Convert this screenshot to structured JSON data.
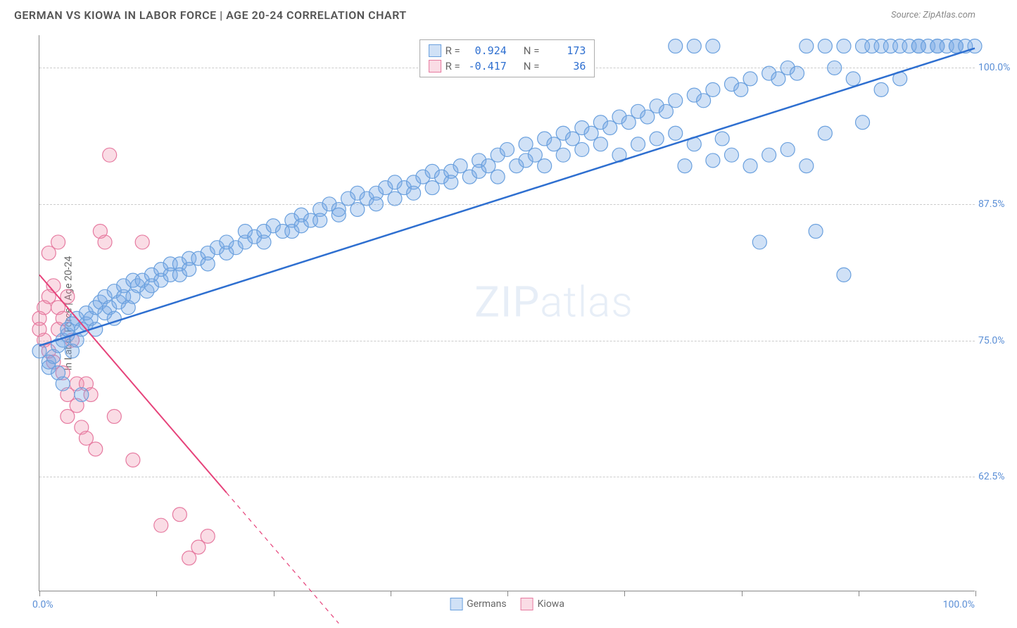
{
  "header": {
    "title": "GERMAN VS KIOWA IN LABOR FORCE | AGE 20-24 CORRELATION CHART",
    "source": "Source: ZipAtlas.com"
  },
  "watermark": {
    "prefix": "ZIP",
    "suffix": "atlas"
  },
  "chart": {
    "type": "scatter",
    "y_axis_title": "In Labor Force | Age 20-24",
    "x_min_label": "0.0%",
    "x_max_label": "100.0%",
    "xlim": [
      0,
      100
    ],
    "ylim": [
      52,
      103
    ],
    "y_ticks": [
      62.5,
      75.0,
      87.5,
      100.0
    ],
    "y_tick_labels": [
      "62.5%",
      "75.0%",
      "87.5%",
      "100.0%"
    ],
    "x_ticks": [
      0,
      12.5,
      25,
      37.5,
      50,
      62.5,
      75,
      87.5,
      100
    ],
    "background_color": "#ffffff",
    "grid_color": "#cccccc",
    "axis_color": "#888888",
    "series": {
      "germans": {
        "label": "Germans",
        "marker_fill": "rgba(120,170,230,0.35)",
        "marker_stroke": "#6aa0de",
        "line_color": "#2e6fd0",
        "line_width": 2.5,
        "marker_radius": 10,
        "R": "0.924",
        "N": "173",
        "trend": {
          "x1": 0,
          "y1": 74.5,
          "x2": 100,
          "y2": 101.8
        },
        "points": [
          [
            0,
            74
          ],
          [
            1,
            73
          ],
          [
            1,
            72.5
          ],
          [
            1.5,
            73.5
          ],
          [
            2,
            72
          ],
          [
            2,
            74.5
          ],
          [
            2.5,
            71
          ],
          [
            2.5,
            75
          ],
          [
            3,
            75.5
          ],
          [
            3,
            76
          ],
          [
            3.5,
            74
          ],
          [
            3.5,
            76.5
          ],
          [
            4,
            75
          ],
          [
            4,
            77
          ],
          [
            4.5,
            76
          ],
          [
            4.5,
            70
          ],
          [
            5,
            76.5
          ],
          [
            5,
            77.5
          ],
          [
            5.5,
            77
          ],
          [
            6,
            78
          ],
          [
            6,
            76
          ],
          [
            6.5,
            78.5
          ],
          [
            7,
            77.5
          ],
          [
            7,
            79
          ],
          [
            7.5,
            78
          ],
          [
            8,
            79.5
          ],
          [
            8,
            77
          ],
          [
            8.5,
            78.5
          ],
          [
            9,
            79
          ],
          [
            9,
            80
          ],
          [
            9.5,
            78
          ],
          [
            10,
            80.5
          ],
          [
            10,
            79
          ],
          [
            10.5,
            80
          ],
          [
            11,
            80.5
          ],
          [
            11.5,
            79.5
          ],
          [
            12,
            81
          ],
          [
            12,
            80
          ],
          [
            13,
            81.5
          ],
          [
            13,
            80.5
          ],
          [
            14,
            81
          ],
          [
            14,
            82
          ],
          [
            15,
            82
          ],
          [
            15,
            81
          ],
          [
            16,
            82.5
          ],
          [
            16,
            81.5
          ],
          [
            17,
            82.5
          ],
          [
            18,
            83
          ],
          [
            18,
            82
          ],
          [
            19,
            83.5
          ],
          [
            20,
            83
          ],
          [
            20,
            84
          ],
          [
            21,
            83.5
          ],
          [
            22,
            84
          ],
          [
            22,
            85
          ],
          [
            23,
            84.5
          ],
          [
            24,
            85
          ],
          [
            24,
            84
          ],
          [
            25,
            85.5
          ],
          [
            26,
            85
          ],
          [
            27,
            86
          ],
          [
            27,
            85
          ],
          [
            28,
            86.5
          ],
          [
            28,
            85.5
          ],
          [
            29,
            86
          ],
          [
            30,
            87
          ],
          [
            30,
            86
          ],
          [
            31,
            87.5
          ],
          [
            32,
            87
          ],
          [
            32,
            86.5
          ],
          [
            33,
            88
          ],
          [
            34,
            87
          ],
          [
            34,
            88.5
          ],
          [
            35,
            88
          ],
          [
            36,
            88.5
          ],
          [
            36,
            87.5
          ],
          [
            37,
            89
          ],
          [
            38,
            88
          ],
          [
            38,
            89.5
          ],
          [
            39,
            89
          ],
          [
            40,
            89.5
          ],
          [
            40,
            88.5
          ],
          [
            41,
            90
          ],
          [
            42,
            89
          ],
          [
            42,
            90.5
          ],
          [
            43,
            90
          ],
          [
            44,
            90.5
          ],
          [
            44,
            89.5
          ],
          [
            45,
            91
          ],
          [
            46,
            90
          ],
          [
            47,
            91.5
          ],
          [
            47,
            90.5
          ],
          [
            48,
            91
          ],
          [
            49,
            92
          ],
          [
            49,
            90
          ],
          [
            50,
            92.5
          ],
          [
            51,
            91
          ],
          [
            52,
            93
          ],
          [
            52,
            91.5
          ],
          [
            53,
            92
          ],
          [
            54,
            93.5
          ],
          [
            54,
            91
          ],
          [
            55,
            93
          ],
          [
            56,
            94
          ],
          [
            56,
            92
          ],
          [
            57,
            93.5
          ],
          [
            58,
            94.5
          ],
          [
            58,
            92.5
          ],
          [
            59,
            94
          ],
          [
            60,
            95
          ],
          [
            60,
            93
          ],
          [
            61,
            94.5
          ],
          [
            62,
            95.5
          ],
          [
            62,
            92
          ],
          [
            63,
            95
          ],
          [
            64,
            96
          ],
          [
            64,
            93
          ],
          [
            65,
            95.5
          ],
          [
            66,
            96.5
          ],
          [
            66,
            93.5
          ],
          [
            67,
            96
          ],
          [
            68,
            97
          ],
          [
            68,
            94
          ],
          [
            69,
            91
          ],
          [
            70,
            97.5
          ],
          [
            70,
            93
          ],
          [
            71,
            97
          ],
          [
            72,
            98
          ],
          [
            72,
            91.5
          ],
          [
            73,
            93.5
          ],
          [
            74,
            98.5
          ],
          [
            74,
            92
          ],
          [
            75,
            98
          ],
          [
            76,
            99
          ],
          [
            76,
            91
          ],
          [
            77,
            84
          ],
          [
            78,
            99.5
          ],
          [
            78,
            92
          ],
          [
            79,
            99
          ],
          [
            80,
            100
          ],
          [
            80,
            92.5
          ],
          [
            81,
            99.5
          ],
          [
            82,
            102
          ],
          [
            82,
            91
          ],
          [
            83,
            85
          ],
          [
            84,
            102
          ],
          [
            84,
            94
          ],
          [
            85,
            100
          ],
          [
            86,
            102
          ],
          [
            86,
            81
          ],
          [
            87,
            99
          ],
          [
            88,
            102
          ],
          [
            88,
            95
          ],
          [
            89,
            102
          ],
          [
            90,
            102
          ],
          [
            90,
            98
          ],
          [
            91,
            102
          ],
          [
            92,
            102
          ],
          [
            92,
            99
          ],
          [
            93,
            102
          ],
          [
            94,
            102
          ],
          [
            94,
            102
          ],
          [
            95,
            102
          ],
          [
            96,
            102
          ],
          [
            96,
            102
          ],
          [
            97,
            102
          ],
          [
            98,
            102
          ],
          [
            98,
            102
          ],
          [
            99,
            102
          ],
          [
            100,
            102
          ],
          [
            68,
            102
          ],
          [
            70,
            102
          ],
          [
            72,
            102
          ]
        ]
      },
      "kiowa": {
        "label": "Kiowa",
        "marker_fill": "rgba(240,140,170,0.30)",
        "marker_stroke": "#e67aa0",
        "line_color": "#e6427a",
        "line_width": 2,
        "marker_radius": 10,
        "R": "-0.417",
        "N": "36",
        "trend_solid": {
          "x1": 0,
          "y1": 81,
          "x2": 20,
          "y2": 61
        },
        "trend_dash": {
          "x1": 20,
          "y1": 61,
          "x2": 32,
          "y2": 49
        },
        "points": [
          [
            0,
            77
          ],
          [
            0,
            76
          ],
          [
            0.5,
            78
          ],
          [
            0.5,
            75
          ],
          [
            1,
            79
          ],
          [
            1,
            74
          ],
          [
            1,
            83
          ],
          [
            1.5,
            80
          ],
          [
            1.5,
            73
          ],
          [
            2,
            78
          ],
          [
            2,
            76
          ],
          [
            2,
            84
          ],
          [
            2.5,
            77
          ],
          [
            2.5,
            72
          ],
          [
            3,
            79
          ],
          [
            3,
            70
          ],
          [
            3,
            68
          ],
          [
            3.5,
            75
          ],
          [
            4,
            71
          ],
          [
            4,
            69
          ],
          [
            4.5,
            67
          ],
          [
            5,
            71
          ],
          [
            5,
            66
          ],
          [
            5.5,
            70
          ],
          [
            6,
            65
          ],
          [
            6.5,
            85
          ],
          [
            7,
            84
          ],
          [
            7.5,
            92
          ],
          [
            8,
            68
          ],
          [
            10,
            64
          ],
          [
            11,
            84
          ],
          [
            13,
            58
          ],
          [
            15,
            59
          ],
          [
            16,
            55
          ],
          [
            17,
            56
          ],
          [
            18,
            57
          ]
        ]
      }
    },
    "legend_top": {
      "rows": [
        {
          "series": "germans",
          "R_label": "R =",
          "R": "0.924",
          "N_label": "N =",
          "N": "173"
        },
        {
          "series": "kiowa",
          "R_label": "R =",
          "R": "-0.417",
          "N_label": "N =",
          "N": "36"
        }
      ]
    },
    "legend_bottom": [
      {
        "series": "germans",
        "label": "Germans"
      },
      {
        "series": "kiowa",
        "label": "Kiowa"
      }
    ]
  }
}
